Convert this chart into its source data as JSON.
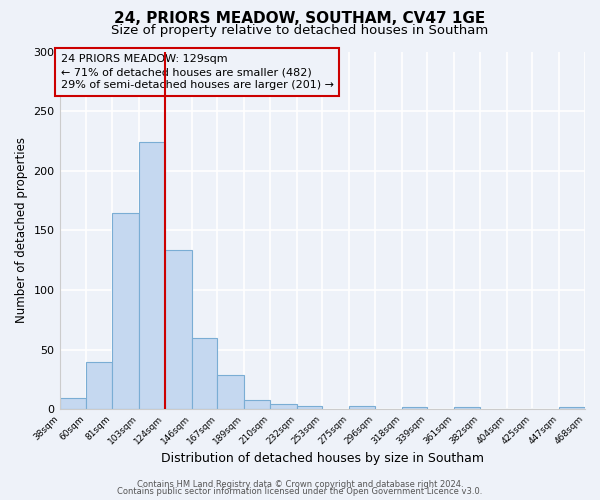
{
  "title": "24, PRIORS MEADOW, SOUTHAM, CV47 1GE",
  "subtitle": "Size of property relative to detached houses in Southam",
  "xlabel": "Distribution of detached houses by size in Southam",
  "ylabel": "Number of detached properties",
  "bin_labels": [
    "38sqm",
    "60sqm",
    "81sqm",
    "103sqm",
    "124sqm",
    "146sqm",
    "167sqm",
    "189sqm",
    "210sqm",
    "232sqm",
    "253sqm",
    "275sqm",
    "296sqm",
    "318sqm",
    "339sqm",
    "361sqm",
    "382sqm",
    "404sqm",
    "425sqm",
    "447sqm",
    "468sqm"
  ],
  "bin_edges": [
    38,
    60,
    81,
    103,
    124,
    146,
    167,
    189,
    210,
    232,
    253,
    275,
    296,
    318,
    339,
    361,
    382,
    404,
    425,
    447,
    468
  ],
  "bar_heights": [
    10,
    40,
    165,
    224,
    134,
    60,
    29,
    8,
    5,
    3,
    0,
    3,
    0,
    2,
    0,
    2,
    0,
    0,
    0,
    2
  ],
  "bar_color": "#c5d8f0",
  "bar_edgecolor": "#7aadd4",
  "vline_x": 124,
  "vline_color": "#cc0000",
  "annotation_line1": "24 PRIORS MEADOW: 129sqm",
  "annotation_line2": "← 71% of detached houses are smaller (482)",
  "annotation_line3": "29% of semi-detached houses are larger (201) →",
  "annotation_box_edgecolor": "#cc0000",
  "ylim": [
    0,
    300
  ],
  "yticks": [
    0,
    50,
    100,
    150,
    200,
    250,
    300
  ],
  "footer_line1": "Contains HM Land Registry data © Crown copyright and database right 2024.",
  "footer_line2": "Contains public sector information licensed under the Open Government Licence v3.0.",
  "background_color": "#eef2f9",
  "grid_color": "#ffffff",
  "title_fontsize": 11,
  "subtitle_fontsize": 9.5
}
